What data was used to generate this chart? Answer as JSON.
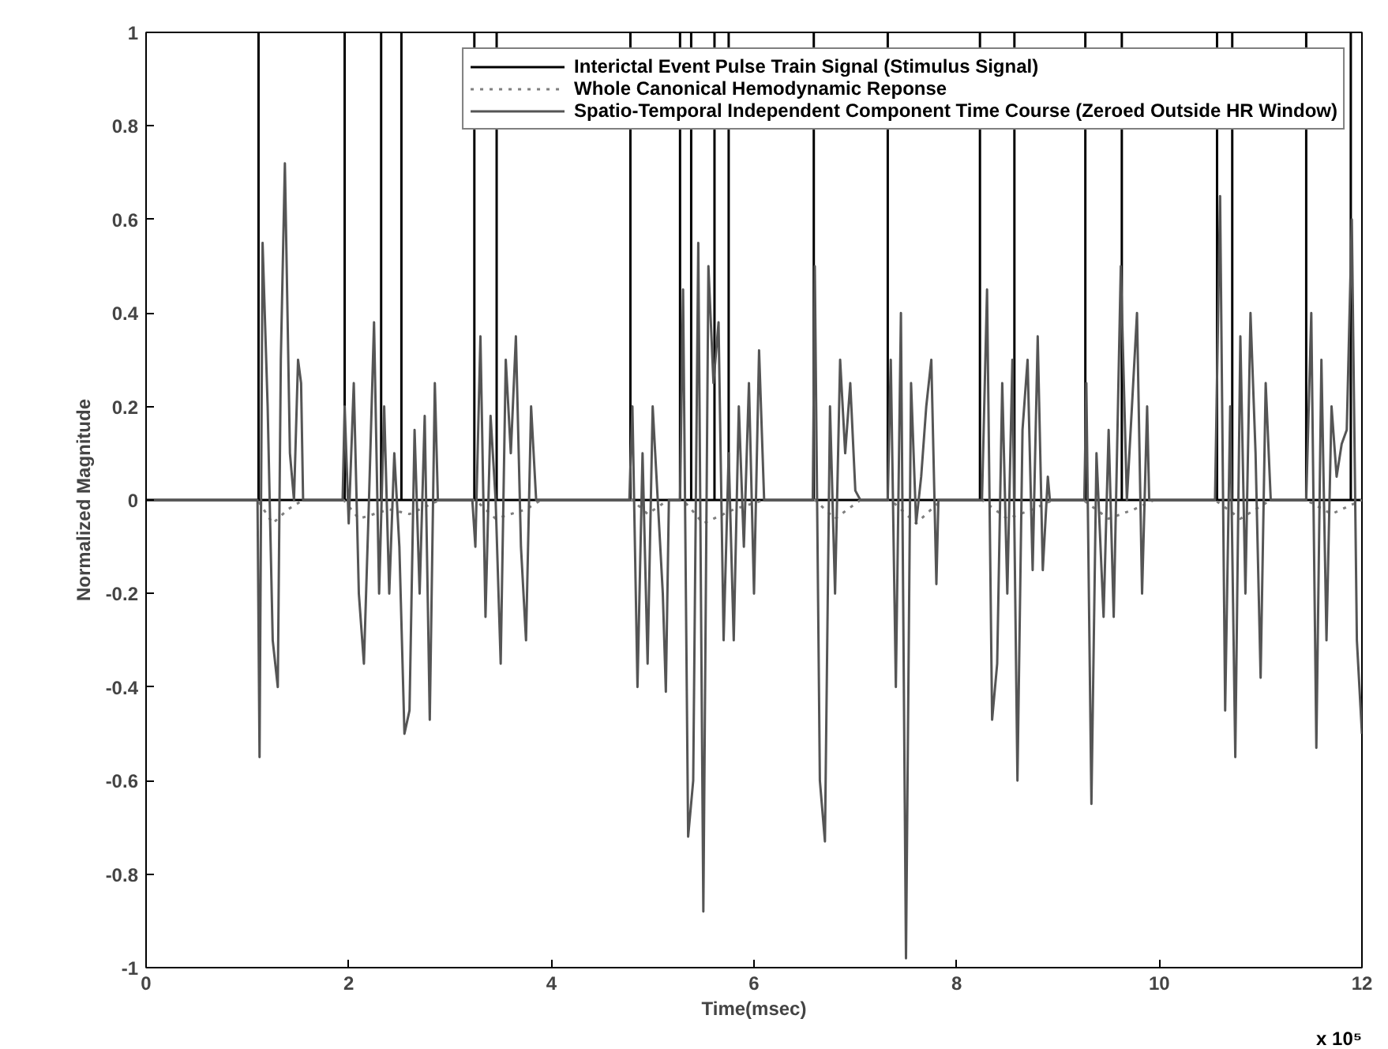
{
  "chart_data": {
    "type": "line",
    "xlabel": "Time(msec)",
    "ylabel": "Normalized Magnitude",
    "xlim": [
      0,
      12
    ],
    "ylim": [
      -1,
      1
    ],
    "xticks": [
      0,
      2,
      4,
      6,
      8,
      10,
      12
    ],
    "yticks": [
      -1,
      -0.8,
      -0.6,
      -0.4,
      -0.2,
      0,
      0.2,
      0.4,
      0.6,
      0.8,
      1
    ],
    "grid": false,
    "legend": "top right",
    "marker": "none",
    "annotations": [
      "x 10⁵"
    ],
    "series": [
      {
        "name": "Interictal Event Pulse Train Signal (Stimulus Signal)",
        "color": "#000000",
        "line_style": "solid",
        "x": [
          0,
          1.11,
          1.11,
          1.11,
          1.96,
          1.96,
          1.96,
          2.32,
          2.32,
          2.32,
          2.52,
          2.52,
          2.52,
          3.24,
          3.24,
          3.24,
          3.46,
          3.46,
          3.46,
          4.78,
          4.78,
          4.78,
          5.27,
          5.27,
          5.27,
          5.38,
          5.38,
          5.38,
          5.61,
          5.61,
          5.61,
          5.75,
          5.75,
          5.75,
          6.59,
          6.59,
          6.59,
          7.32,
          7.32,
          7.32,
          8.23,
          8.23,
          8.23,
          8.57,
          8.57,
          8.57,
          9.27,
          9.27,
          9.27,
          9.63,
          9.63,
          9.63,
          10.57,
          10.57,
          10.57,
          10.72,
          10.72,
          10.72,
          11.45,
          11.45,
          11.45,
          11.89,
          11.89,
          11.89,
          12
        ],
        "values": [
          0,
          0,
          1,
          0,
          0,
          1,
          0,
          0,
          1,
          0,
          0,
          1,
          0,
          0,
          1,
          0,
          0,
          1,
          0,
          0,
          1,
          0,
          0,
          1,
          0,
          0,
          1,
          0,
          0,
          1,
          0,
          0,
          1,
          0,
          0,
          1,
          0,
          0,
          1,
          0,
          0,
          1,
          0,
          0,
          1,
          0,
          0,
          1,
          0,
          0,
          1,
          0,
          0,
          1,
          0,
          0,
          1,
          0,
          0,
          1,
          0,
          0,
          1,
          0,
          0
        ]
      },
      {
        "name": "Whole Canonical Hemodynamic Reponse",
        "color": "#7f7f7f",
        "line_style": "dotted",
        "x": [
          0,
          1.1,
          1.25,
          1.4,
          1.55,
          1.95,
          2.1,
          2.4,
          2.6,
          2.9,
          3.25,
          3.45,
          3.75,
          3.9,
          4.8,
          4.95,
          5.15,
          5.3,
          5.5,
          5.8,
          6.1,
          6.6,
          6.8,
          7.05,
          7.35,
          7.6,
          7.85,
          8.25,
          8.5,
          8.75,
          8.95,
          9.25,
          9.5,
          9.75,
          9.95,
          10.55,
          10.8,
          11.1,
          11.45,
          11.7,
          12
        ],
        "values": [
          0,
          0,
          -0.05,
          -0.02,
          0,
          0,
          -0.04,
          -0.02,
          -0.03,
          0,
          0,
          -0.04,
          -0.02,
          0,
          0,
          -0.03,
          0,
          0,
          -0.05,
          -0.02,
          0,
          0,
          -0.04,
          0,
          0,
          -0.05,
          0,
          0,
          -0.04,
          -0.02,
          0,
          0,
          -0.04,
          -0.02,
          0,
          0,
          -0.04,
          0,
          0,
          -0.03,
          0
        ]
      },
      {
        "name": "Spatio-Temporal Independent Component Time Course (Zeroed Outside HR Window)",
        "color": "#555555",
        "line_style": "solid",
        "x": [
          0,
          1.1,
          1.12,
          1.15,
          1.2,
          1.25,
          1.3,
          1.33,
          1.37,
          1.42,
          1.46,
          1.5,
          1.53,
          1.55,
          1.94,
          1.96,
          2.0,
          2.05,
          2.1,
          2.15,
          2.2,
          2.25,
          2.3,
          2.35,
          2.4,
          2.45,
          2.5,
          2.55,
          2.6,
          2.65,
          2.7,
          2.75,
          2.8,
          2.85,
          2.88,
          3.22,
          3.25,
          3.3,
          3.35,
          3.4,
          3.45,
          3.5,
          3.55,
          3.6,
          3.65,
          3.7,
          3.75,
          3.8,
          3.85,
          4.77,
          4.8,
          4.85,
          4.9,
          4.95,
          5.0,
          5.05,
          5.1,
          5.13,
          5.16,
          5.27,
          5.3,
          5.35,
          5.4,
          5.45,
          5.5,
          5.55,
          5.6,
          5.65,
          5.7,
          5.75,
          5.8,
          5.85,
          5.9,
          5.95,
          6.0,
          6.05,
          6.1,
          6.58,
          6.6,
          6.65,
          6.7,
          6.75,
          6.8,
          6.85,
          6.9,
          6.95,
          7.0,
          7.05,
          7.32,
          7.35,
          7.4,
          7.45,
          7.5,
          7.55,
          7.6,
          7.65,
          7.7,
          7.75,
          7.8,
          7.82,
          8.22,
          8.25,
          8.3,
          8.35,
          8.4,
          8.45,
          8.5,
          8.55,
          8.6,
          8.65,
          8.7,
          8.75,
          8.8,
          8.85,
          8.9,
          8.92,
          9.26,
          9.28,
          9.33,
          9.38,
          9.45,
          9.5,
          9.55,
          9.62,
          9.68,
          9.73,
          9.78,
          9.83,
          9.88,
          9.9,
          10.55,
          10.6,
          10.65,
          10.7,
          10.75,
          10.8,
          10.85,
          10.9,
          10.95,
          11.0,
          11.05,
          11.1,
          11.45,
          11.5,
          11.55,
          11.6,
          11.65,
          11.7,
          11.75,
          11.8,
          11.85,
          11.9,
          11.95,
          12
        ],
        "values": [
          0,
          0,
          -0.55,
          0.55,
          0.2,
          -0.3,
          -0.4,
          0.3,
          0.72,
          0.1,
          0.0,
          0.3,
          0.25,
          0,
          0,
          0.2,
          -0.05,
          0.25,
          -0.2,
          -0.35,
          0.0,
          0.38,
          -0.2,
          0.2,
          -0.2,
          0.1,
          -0.1,
          -0.5,
          -0.45,
          0.15,
          -0.2,
          0.18,
          -0.47,
          0.25,
          0,
          0,
          -0.1,
          0.35,
          -0.25,
          0.18,
          0.0,
          -0.35,
          0.3,
          0.1,
          0.35,
          -0.1,
          -0.3,
          0.2,
          0,
          0,
          0.2,
          -0.4,
          0.1,
          -0.35,
          0.2,
          0.0,
          -0.2,
          -0.41,
          0,
          0,
          0.45,
          -0.72,
          -0.6,
          0.55,
          -0.88,
          0.5,
          0.25,
          0.38,
          -0.3,
          0.1,
          -0.3,
          0.2,
          -0.1,
          0.25,
          -0.2,
          0.32,
          0,
          0,
          0.5,
          -0.6,
          -0.73,
          0.2,
          -0.2,
          0.3,
          0.1,
          0.25,
          0.02,
          0,
          0,
          0.3,
          -0.4,
          0.4,
          -0.98,
          0.25,
          -0.05,
          0.05,
          0.2,
          0.3,
          -0.18,
          0,
          0,
          0.0,
          0.45,
          -0.47,
          -0.35,
          0.25,
          -0.2,
          0.3,
          -0.6,
          0.15,
          0.3,
          -0.15,
          0.35,
          -0.15,
          0.05,
          0,
          0,
          0.25,
          -0.65,
          0.1,
          -0.25,
          0.15,
          -0.25,
          0.5,
          0.0,
          0.2,
          0.4,
          -0.2,
          0.2,
          0,
          0,
          0.65,
          -0.45,
          0.2,
          -0.55,
          0.35,
          -0.2,
          0.4,
          0.1,
          -0.38,
          0.25,
          0,
          0,
          0.4,
          -0.53,
          0.3,
          -0.3,
          0.2,
          0.05,
          0.12,
          0.15,
          0.6,
          -0.3,
          -0.5
        ]
      }
    ]
  }
}
